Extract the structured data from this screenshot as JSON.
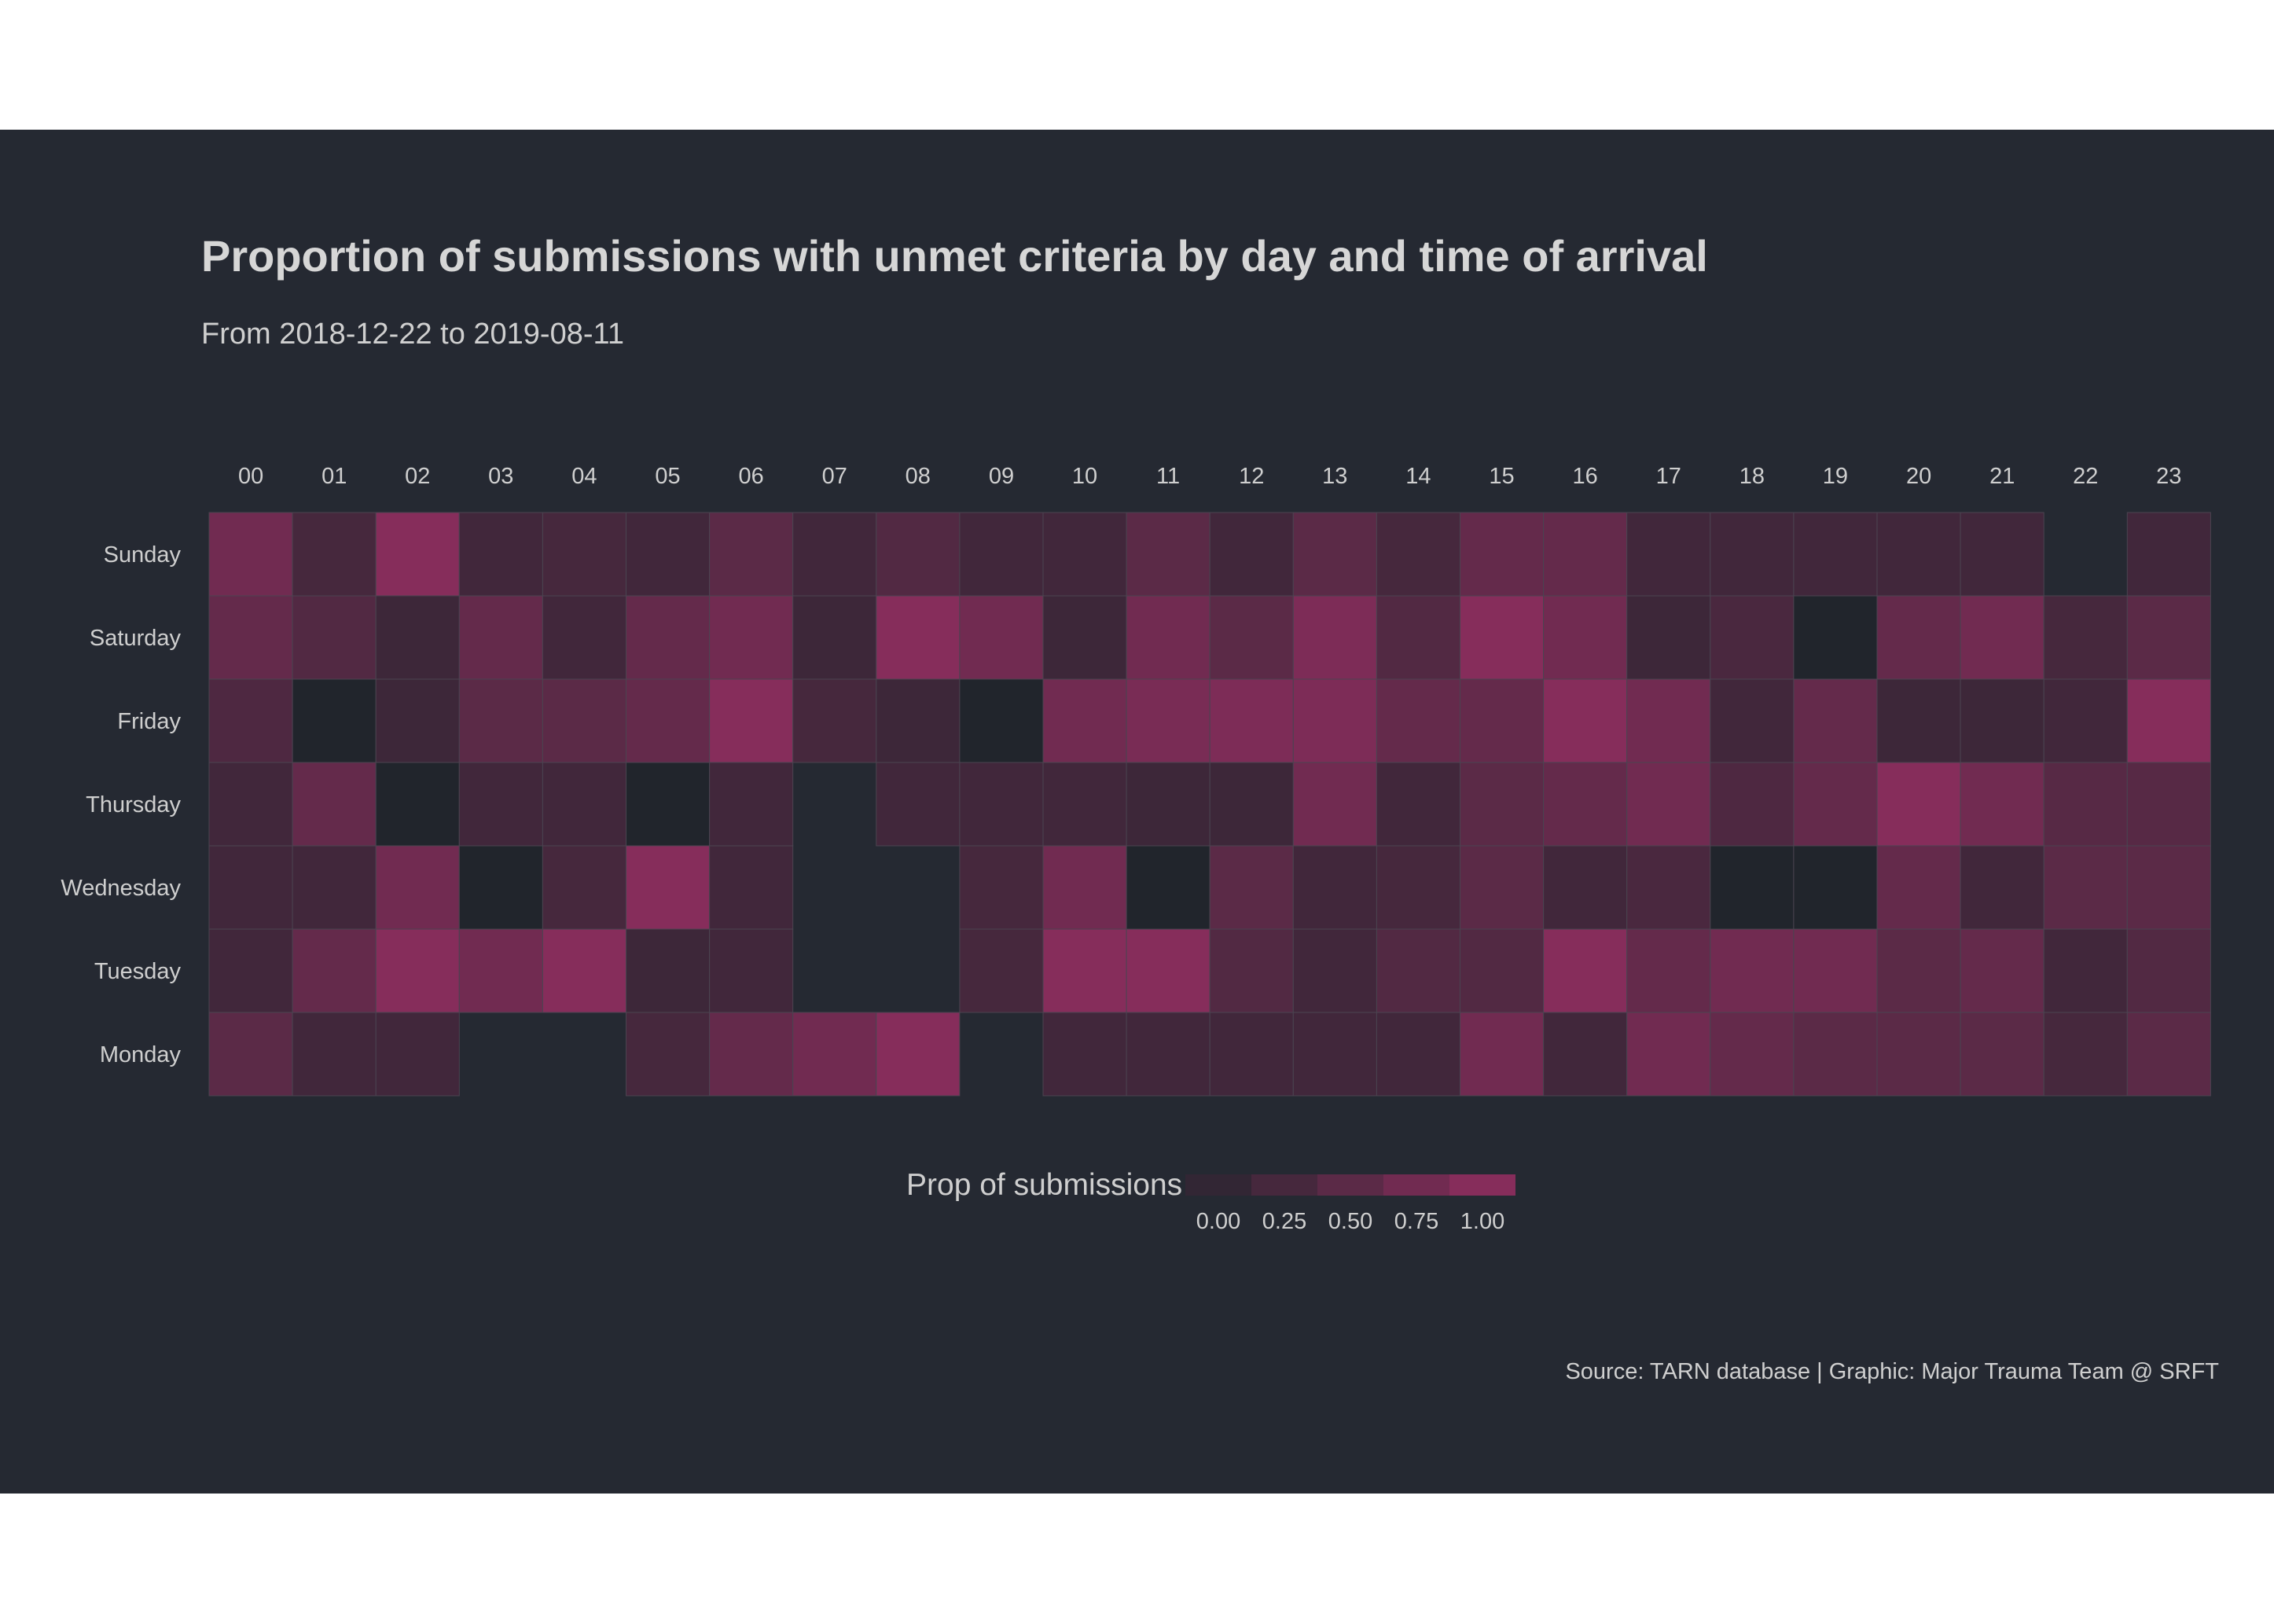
{
  "chart_data": {
    "type": "heatmap",
    "title": "Proportion of submissions with unmet criteria by day and time of arrival",
    "subtitle": "From 2018-12-22 to 2019-08-11",
    "x_categories": [
      "00",
      "01",
      "02",
      "03",
      "04",
      "05",
      "06",
      "07",
      "08",
      "09",
      "10",
      "11",
      "12",
      "13",
      "14",
      "15",
      "16",
      "17",
      "18",
      "19",
      "20",
      "21",
      "22",
      "23"
    ],
    "y_categories": [
      "Sunday",
      "Saturday",
      "Friday",
      "Thursday",
      "Wednesday",
      "Tuesday",
      "Monday"
    ],
    "values": [
      [
        0.75,
        0.25,
        1.0,
        0.2,
        0.25,
        0.2,
        0.5,
        0.2,
        0.4,
        0.2,
        0.2,
        0.5,
        0.2,
        0.5,
        0.25,
        0.6,
        0.6,
        0.2,
        0.2,
        0.2,
        0.2,
        0.2,
        null,
        0.2
      ],
      [
        0.6,
        0.4,
        0.15,
        0.6,
        0.2,
        0.6,
        0.75,
        0.15,
        1.0,
        0.75,
        0.15,
        0.75,
        0.5,
        0.9,
        0.4,
        1.0,
        0.75,
        0.15,
        0.3,
        0.0,
        0.6,
        0.75,
        0.25,
        0.5
      ],
      [
        0.35,
        0.0,
        0.15,
        0.5,
        0.5,
        0.6,
        1.0,
        0.25,
        0.15,
        0.0,
        0.75,
        0.85,
        0.9,
        0.9,
        0.6,
        0.6,
        1.0,
        0.75,
        0.2,
        0.6,
        0.15,
        0.15,
        0.2,
        1.0
      ],
      [
        0.2,
        0.6,
        0.0,
        0.2,
        0.2,
        0.0,
        0.2,
        null,
        0.2,
        0.2,
        0.2,
        0.15,
        0.15,
        0.75,
        0.2,
        0.5,
        0.6,
        0.75,
        0.35,
        0.6,
        1.0,
        0.75,
        0.45,
        0.45
      ],
      [
        0.2,
        0.2,
        0.75,
        0.0,
        0.25,
        1.0,
        0.2,
        null,
        null,
        0.25,
        0.75,
        0.0,
        0.5,
        0.2,
        0.25,
        0.5,
        0.2,
        0.3,
        0.0,
        0.0,
        0.6,
        0.2,
        0.5,
        0.5
      ],
      [
        0.2,
        0.6,
        1.0,
        0.75,
        1.0,
        0.15,
        0.2,
        null,
        null,
        0.25,
        1.0,
        1.0,
        0.4,
        0.2,
        0.4,
        0.4,
        1.0,
        0.6,
        0.75,
        0.75,
        0.5,
        0.6,
        0.2,
        0.4
      ],
      [
        0.5,
        0.2,
        0.2,
        null,
        null,
        0.25,
        0.6,
        0.75,
        1.0,
        null,
        0.2,
        0.2,
        0.2,
        0.2,
        0.2,
        0.75,
        0.2,
        0.75,
        0.6,
        0.5,
        0.5,
        0.5,
        0.25,
        0.5
      ]
    ],
    "legend": {
      "title": "Prop of submissions",
      "ticks": [
        "0.00",
        "0.25",
        "0.50",
        "0.75",
        "1.00"
      ],
      "position": "bottom"
    },
    "caption": "Source: TARN database | Graphic: Major Trauma Team @ SRFT",
    "colors": {
      "low": "#302633",
      "high": "#862d5b",
      "zero": "#21252c",
      "background": "#252932"
    }
  }
}
